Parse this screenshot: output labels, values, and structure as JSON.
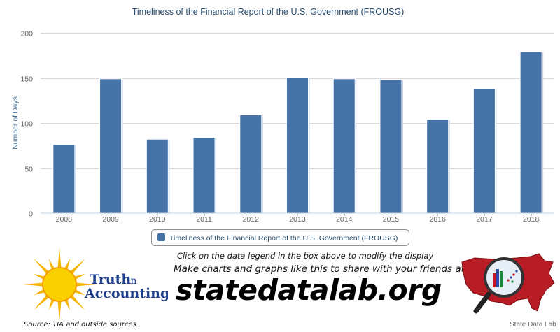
{
  "chart_data": {
    "type": "bar",
    "title": "Timeliness of the Financial Report of the U.S. Government (FROUSG)",
    "ylabel": "Number of Days",
    "xlabel": "",
    "categories": [
      "2008",
      "2009",
      "2010",
      "2011",
      "2012",
      "2013",
      "2014",
      "2015",
      "2016",
      "2017",
      "2018"
    ],
    "series": [
      {
        "name": "Timeliness of the Financial Report of the U.S. Government (FROUSG)",
        "values": [
          76,
          149,
          82,
          84,
          109,
          150,
          149,
          148,
          104,
          138,
          179
        ],
        "color": "#4572a7"
      }
    ],
    "ylim": [
      0,
      200
    ],
    "yticks": [
      0,
      50,
      100,
      150,
      200
    ],
    "grid": true,
    "legend_position": "bottom"
  },
  "footer": {
    "tia_logo_text_line1": "Truth",
    "tia_logo_text_line1b": "in",
    "tia_logo_text_line2": "Accounting",
    "source": "Source: TIA and outside sources",
    "promo_line1": "Click on the data legend in the box above to modify the display",
    "promo_line2": "Make charts and graphs like this to share with your friends at",
    "promo_site": "statedatalab.org",
    "sdl_label": "State Data Lab"
  }
}
